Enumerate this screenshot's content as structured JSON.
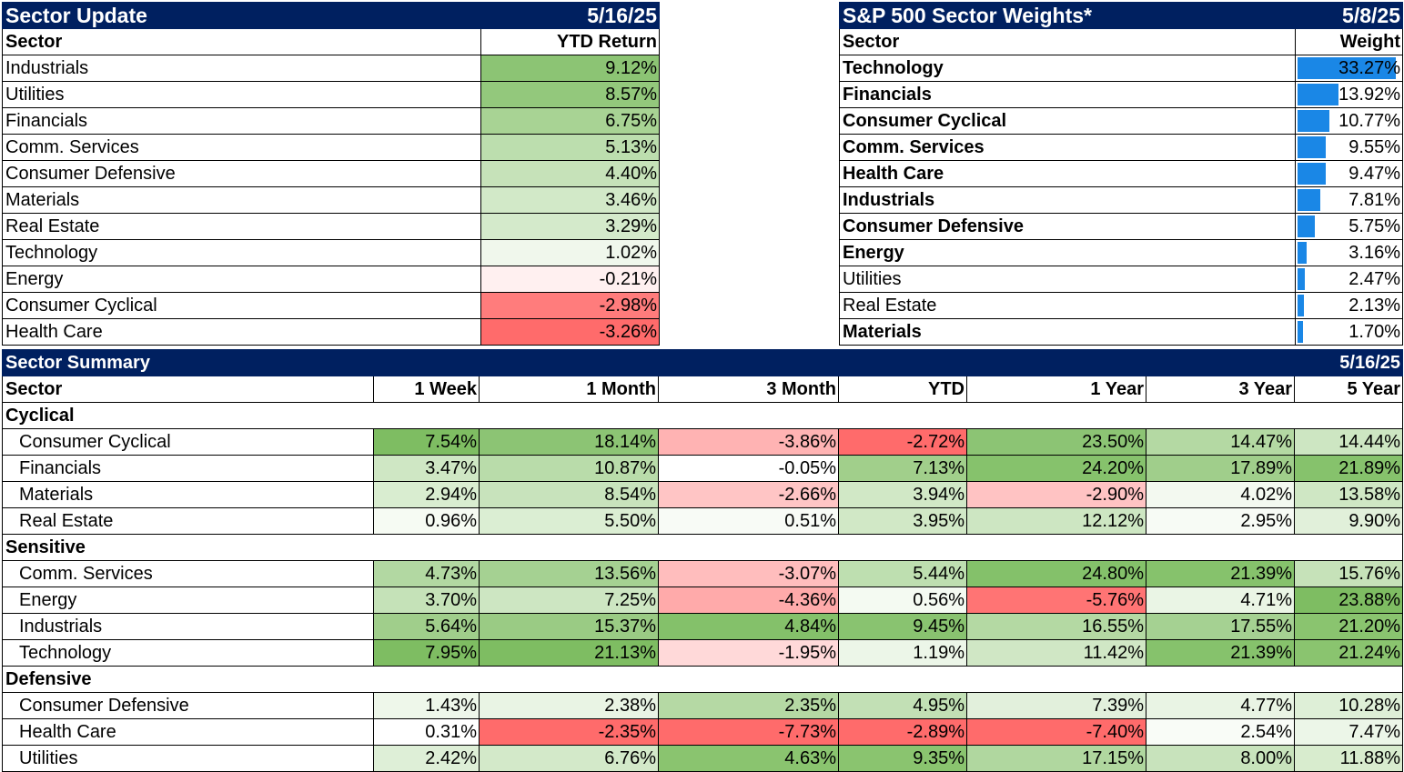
{
  "sector_update": {
    "title": "Sector Update",
    "date": "5/16/25",
    "col_sector": "Sector",
    "col_return": "YTD Return",
    "rows": [
      {
        "name": "Industrials",
        "value": "9.12%",
        "color": "#8cc474"
      },
      {
        "name": "Utilities",
        "value": "8.57%",
        "color": "#93c87c"
      },
      {
        "name": "Financials",
        "value": "6.75%",
        "color": "#a8d394"
      },
      {
        "name": "Comm. Services",
        "value": "5.13%",
        "color": "#bcdeae"
      },
      {
        "name": "Consumer Defensive",
        "value": "4.40%",
        "color": "#c6e2b9"
      },
      {
        "name": "Materials",
        "value": "3.46%",
        "color": "#d2e9c8"
      },
      {
        "name": "Real Estate",
        "value": "3.29%",
        "color": "#d4eacb"
      },
      {
        "name": "Technology",
        "value": "1.02%",
        "color": "#f0f7ec"
      },
      {
        "name": "Energy",
        "value": "-0.21%",
        "color": "#fff0f0"
      },
      {
        "name": "Consumer Cyclical",
        "value": "-2.98%",
        "color": "#ff7c7c"
      },
      {
        "name": "Health Care",
        "value": "-3.26%",
        "color": "#ff6b6b"
      }
    ]
  },
  "sector_weights": {
    "title": "S&P 500 Sector Weights*",
    "date": "5/8/25",
    "col_sector": "Sector",
    "col_weight": "Weight",
    "bar_color": "#1a87e6",
    "rows": [
      {
        "name": "Technology",
        "value": "33.27%",
        "weight": 33.27,
        "bold": true
      },
      {
        "name": "Financials",
        "value": "13.92%",
        "weight": 13.92,
        "bold": true
      },
      {
        "name": "Consumer Cyclical",
        "value": "10.77%",
        "weight": 10.77,
        "bold": true
      },
      {
        "name": "Comm. Services",
        "value": "9.55%",
        "weight": 9.55,
        "bold": true
      },
      {
        "name": "Health Care",
        "value": "9.47%",
        "weight": 9.47,
        "bold": true
      },
      {
        "name": "Industrials",
        "value": "7.81%",
        "weight": 7.81,
        "bold": true
      },
      {
        "name": "Consumer Defensive",
        "value": "5.75%",
        "weight": 5.75,
        "bold": true
      },
      {
        "name": "Energy",
        "value": "3.16%",
        "weight": 3.16,
        "bold": true
      },
      {
        "name": "Utilities",
        "value": "2.47%",
        "weight": 2.47,
        "bold": false
      },
      {
        "name": "Real Estate",
        "value": "2.13%",
        "weight": 2.13,
        "bold": false
      },
      {
        "name": "Materials",
        "value": "1.70%",
        "weight": 1.7,
        "bold": true
      }
    ]
  },
  "sector_summary": {
    "title": "Sector Summary",
    "date": "5/16/25",
    "columns": [
      "Sector",
      "1 Week",
      "1 Month",
      "3 Month",
      "YTD",
      "1 Year",
      "3 Year",
      "5 Year"
    ],
    "groups": [
      {
        "name": "Cyclical",
        "rows": [
          {
            "name": "Consumer Cyclical",
            "values": [
              "7.54%",
              "18.14%",
              "-3.86%",
              "-2.72%",
              "23.50%",
              "14.47%",
              "14.44%"
            ],
            "colors": [
              "#7ebd62",
              "#8cc474",
              "#ffb3b3",
              "#ff6b6b",
              "#8cc474",
              "#b4d9a3",
              "#cde6c2"
            ]
          },
          {
            "name": "Financials",
            "values": [
              "3.47%",
              "10.87%",
              "-0.05%",
              "7.13%",
              "24.20%",
              "17.89%",
              "21.89%"
            ],
            "colors": [
              "#cfe7c4",
              "#b9dcaa",
              "#ffffff",
              "#a1cf8b",
              "#86c26c",
              "#a0ce8b",
              "#86c26c"
            ]
          },
          {
            "name": "Materials",
            "values": [
              "2.94%",
              "8.54%",
              "-2.66%",
              "3.94%",
              "-2.90%",
              "4.02%",
              "13.58%"
            ],
            "colors": [
              "#d9edd0",
              "#c8e3bc",
              "#ffc5c5",
              "#d1e8c6",
              "#ffc3c3",
              "#f3f9f0",
              "#cfe7c4"
            ]
          },
          {
            "name": "Real Estate",
            "values": [
              "0.96%",
              "5.50%",
              "0.51%",
              "3.95%",
              "12.12%",
              "2.95%",
              "9.90%"
            ],
            "colors": [
              "#f6fbf3",
              "#dbeed3",
              "#f8fbf6",
              "#d1e8c6",
              "#cde6c2",
              "#f7fbf5",
              "#e1f0da"
            ]
          }
        ]
      },
      {
        "name": "Sensitive",
        "rows": [
          {
            "name": "Comm. Services",
            "values": [
              "4.73%",
              "13.56%",
              "-3.07%",
              "5.44%",
              "24.80%",
              "21.39%",
              "15.76%"
            ],
            "colors": [
              "#b2d8a2",
              "#a5d192",
              "#ffbdbd",
              "#bedfb0",
              "#84c16a",
              "#86c26c",
              "#c6e2b9"
            ]
          },
          {
            "name": "Energy",
            "values": [
              "3.70%",
              "7.25%",
              "-4.36%",
              "0.56%",
              "-5.76%",
              "4.71%",
              "23.88%"
            ],
            "colors": [
              "#c5e2b8",
              "#cde6c2",
              "#ffaaaa",
              "#f4faf2",
              "#ff7474",
              "#eaf5e5",
              "#7ebd62"
            ]
          },
          {
            "name": "Industrials",
            "values": [
              "5.64%",
              "15.37%",
              "4.84%",
              "9.45%",
              "16.55%",
              "17.55%",
              "21.20%"
            ],
            "colors": [
              "#a0ce8b",
              "#9acb84",
              "#84c16a",
              "#89c370",
              "#b4d9a3",
              "#a5d192",
              "#8ac46f"
            ]
          },
          {
            "name": "Technology",
            "values": [
              "7.95%",
              "21.13%",
              "-1.95%",
              "1.19%",
              "11.42%",
              "21.39%",
              "21.24%"
            ],
            "colors": [
              "#7ebd62",
              "#7ebd62",
              "#ffd9d9",
              "#ecf6e8",
              "#d0e7c5",
              "#86c26c",
              "#8ac46f"
            ]
          }
        ]
      },
      {
        "name": "Defensive",
        "rows": [
          {
            "name": "Consumer Defensive",
            "values": [
              "1.43%",
              "2.38%",
              "2.35%",
              "4.95%",
              "7.39%",
              "4.77%",
              "10.28%"
            ],
            "colors": [
              "#eef7ea",
              "#e9f4e4",
              "#b5d9a4",
              "#c2e0b5",
              "#e2f0dc",
              "#e9f4e4",
              "#deefd7"
            ]
          },
          {
            "name": "Health Care",
            "values": [
              "0.31%",
              "-2.35%",
              "-7.73%",
              "-2.89%",
              "-7.40%",
              "2.54%",
              "7.47%"
            ],
            "colors": [
              "#ffffff",
              "#ff6b6b",
              "#ff6b6b",
              "#ff6b6b",
              "#ff6b6b",
              "#f9fcf7",
              "#ecf6e8"
            ]
          },
          {
            "name": "Utilities",
            "values": [
              "2.42%",
              "6.76%",
              "4.63%",
              "9.35%",
              "17.15%",
              "8.00%",
              "11.88%"
            ],
            "colors": [
              "#deefd7",
              "#d3e9c9",
              "#8ac46f",
              "#8ac46f",
              "#b0d79f",
              "#c8e3bc",
              "#d8ecce"
            ]
          }
        ]
      }
    ]
  }
}
